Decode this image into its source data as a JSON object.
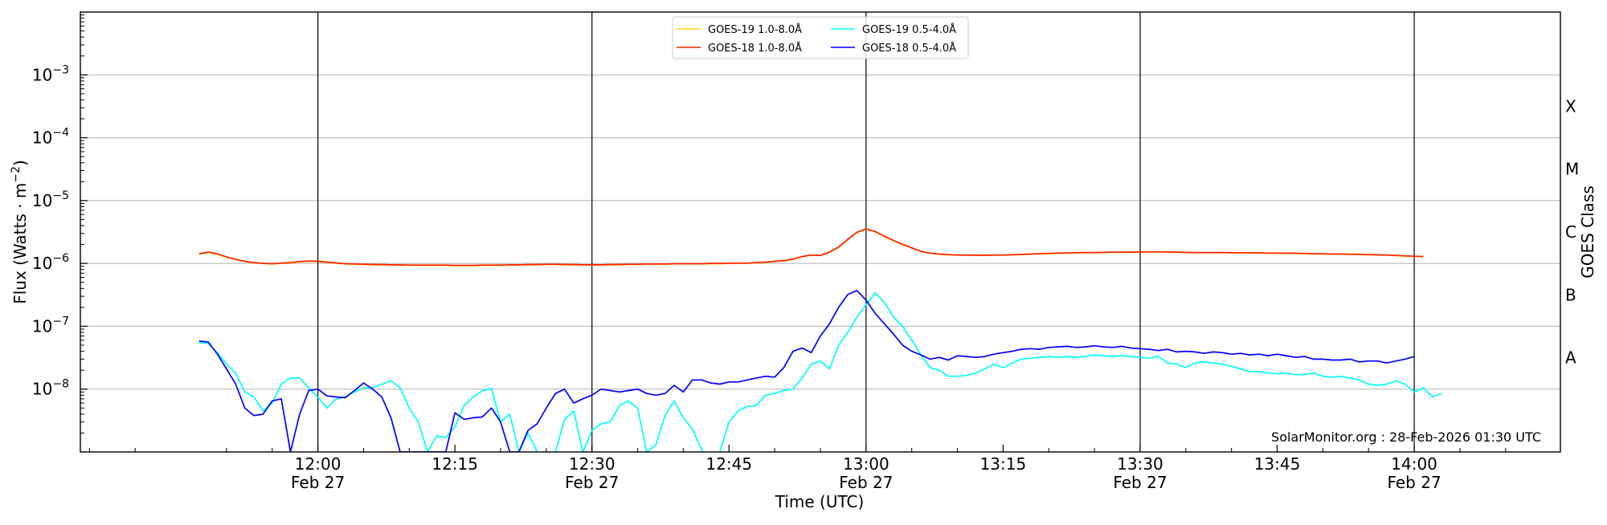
{
  "chart_data": {
    "type": "line",
    "xlabel": "Time (UTC)",
    "ylabel": "Flux (Watts · m",
    "ylabel_sup": "−2",
    "ylabel_end": ")",
    "y2label": "GOES Class",
    "credit": "SolarMonitor.org : 28-Feb-2026 01:30 UTC",
    "y_scale": "log",
    "ylim": [
      1e-09,
      0.01
    ],
    "xlim_min": [
      -26,
      136
    ],
    "x_ticks": [
      {
        "min": 0,
        "label": "12:00",
        "date": "Feb 27"
      },
      {
        "min": 15,
        "label": "12:15",
        "date": ""
      },
      {
        "min": 30,
        "label": "12:30",
        "date": "Feb 27"
      },
      {
        "min": 45,
        "label": "12:45",
        "date": ""
      },
      {
        "min": 60,
        "label": "13:00",
        "date": "Feb 27"
      },
      {
        "min": 75,
        "label": "13:15",
        "date": ""
      },
      {
        "min": 90,
        "label": "13:30",
        "date": "Feb 27"
      },
      {
        "min": 105,
        "label": "13:45",
        "date": ""
      },
      {
        "min": 120,
        "label": "14:00",
        "date": "Feb 27"
      }
    ],
    "y_ticks": [
      {
        "exp": -8,
        "base": "10",
        "sup": "−8"
      },
      {
        "exp": -7,
        "base": "10",
        "sup": "−7"
      },
      {
        "exp": -6,
        "base": "10",
        "sup": "−6"
      },
      {
        "exp": -5,
        "base": "10",
        "sup": "−5"
      },
      {
        "exp": -4,
        "base": "10",
        "sup": "−4"
      },
      {
        "exp": -3,
        "base": "10",
        "sup": "−3"
      }
    ],
    "goes_classes": [
      {
        "label": "A",
        "exp": -7.5
      },
      {
        "label": "B",
        "exp": -6.5
      },
      {
        "label": "C",
        "exp": -5.5
      },
      {
        "label": "M",
        "exp": -4.5
      },
      {
        "label": "X",
        "exp": -3.5
      }
    ],
    "legend_placement": "top-center",
    "grid": "horizontal at decades, vertical lines at 12:00, 12:30, 13:00, 13:30, 14:00",
    "x_start_min": -13,
    "x_step_min": 1,
    "series": [
      {
        "name": "GOES-19 1.0-8.0Å",
        "color": "#FFD700",
        "values": [
          1.4e-06,
          1.5e-06,
          1.4e-06,
          1.25e-06,
          1.15e-06,
          1.07e-06,
          1.02e-06,
          1e-06,
          9.8e-07,
          1e-06,
          1.02e-06,
          1.06e-06,
          1.08e-06,
          1.07e-06,
          1.04e-06,
          1.01e-06,
          9.8e-07,
          9.7e-07,
          9.6e-07,
          9.5e-07,
          9.5e-07,
          9.4e-07,
          9.4e-07,
          9.3e-07,
          9.3e-07,
          9.3e-07,
          9.3e-07,
          9.3e-07,
          9.2e-07,
          9.2e-07,
          9.2e-07,
          9.3e-07,
          9.3e-07,
          9.3e-07,
          9.4e-07,
          9.4e-07,
          9.5e-07,
          9.5e-07,
          9.6e-07,
          9.6e-07,
          9.5e-07,
          9.5e-07,
          9.4e-07,
          9.4e-07,
          9.4e-07,
          9.5e-07,
          9.5e-07,
          9.6e-07,
          9.6e-07,
          9.7e-07,
          9.7e-07,
          9.7e-07,
          9.8e-07,
          9.8e-07,
          9.8e-07,
          9.8e-07,
          9.9e-07,
          9.9e-07,
          1e-06,
          1e-06,
          1e-06,
          1.02e-06,
          1.04e-06,
          1.07e-06,
          1.1e-06,
          1.16e-06,
          1.28e-06,
          1.35e-06,
          1.33e-06,
          1.5e-06,
          1.8e-06,
          2.4e-06,
          3.1e-06,
          3.5e-06,
          3.2e-06,
          2.7e-06,
          2.3e-06,
          2e-06,
          1.75e-06,
          1.55e-06,
          1.45e-06,
          1.4e-06,
          1.37e-06,
          1.35e-06,
          1.35e-06,
          1.34e-06,
          1.34e-06,
          1.35e-06,
          1.35e-06,
          1.36e-06,
          1.38e-06,
          1.4e-06,
          1.42e-06,
          1.43e-06,
          1.45e-06,
          1.46e-06,
          1.47e-06,
          1.48e-06,
          1.48e-06,
          1.49e-06,
          1.5e-06,
          1.5e-06,
          1.5e-06,
          1.51e-06,
          1.52e-06,
          1.52e-06,
          1.51e-06,
          1.5e-06,
          1.49e-06,
          1.48e-06,
          1.48e-06,
          1.48e-06,
          1.48e-06,
          1.47e-06,
          1.47e-06,
          1.47e-06,
          1.46e-06,
          1.45e-06,
          1.45e-06,
          1.44e-06,
          1.44e-06,
          1.43e-06,
          1.42e-06,
          1.41e-06,
          1.4e-06,
          1.4e-06,
          1.39e-06,
          1.38e-06,
          1.37e-06,
          1.36e-06,
          1.35e-06,
          1.33e-06,
          1.31e-06,
          1.29e-06,
          1.28e-06
        ]
      },
      {
        "name": "GOES-18 1.0-8.0Å",
        "color": "#FF2000",
        "values": [
          1.42e-06,
          1.52e-06,
          1.42e-06,
          1.27e-06,
          1.16e-06,
          1.08e-06,
          1.03e-06,
          1e-06,
          9.9e-07,
          1.01e-06,
          1.03e-06,
          1.07e-06,
          1.09e-06,
          1.08e-06,
          1.05e-06,
          1.02e-06,
          9.9e-07,
          9.8e-07,
          9.7e-07,
          9.6e-07,
          9.6e-07,
          9.5e-07,
          9.5e-07,
          9.4e-07,
          9.4e-07,
          9.4e-07,
          9.4e-07,
          9.4e-07,
          9.3e-07,
          9.3e-07,
          9.3e-07,
          9.4e-07,
          9.4e-07,
          9.4e-07,
          9.5e-07,
          9.5e-07,
          9.6e-07,
          9.6e-07,
          9.7e-07,
          9.7e-07,
          9.6e-07,
          9.6e-07,
          9.5e-07,
          9.5e-07,
          9.5e-07,
          9.6e-07,
          9.6e-07,
          9.7e-07,
          9.7e-07,
          9.8e-07,
          9.8e-07,
          9.8e-07,
          9.9e-07,
          9.9e-07,
          9.9e-07,
          9.9e-07,
          1e-06,
          1e-06,
          1.01e-06,
          1.01e-06,
          1.01e-06,
          1.03e-06,
          1.05e-06,
          1.08e-06,
          1.11e-06,
          1.17e-06,
          1.29e-06,
          1.36e-06,
          1.34e-06,
          1.52e-06,
          1.82e-06,
          2.42e-06,
          3.13e-06,
          3.55e-06,
          3.22e-06,
          2.72e-06,
          2.32e-06,
          2.02e-06,
          1.77e-06,
          1.56e-06,
          1.46e-06,
          1.41e-06,
          1.38e-06,
          1.36e-06,
          1.36e-06,
          1.35e-06,
          1.35e-06,
          1.36e-06,
          1.36e-06,
          1.37e-06,
          1.39e-06,
          1.41e-06,
          1.43e-06,
          1.44e-06,
          1.46e-06,
          1.47e-06,
          1.48e-06,
          1.49e-06,
          1.49e-06,
          1.5e-06,
          1.51e-06,
          1.51e-06,
          1.51e-06,
          1.52e-06,
          1.53e-06,
          1.53e-06,
          1.52e-06,
          1.51e-06,
          1.5e-06,
          1.49e-06,
          1.49e-06,
          1.49e-06,
          1.49e-06,
          1.48e-06,
          1.48e-06,
          1.48e-06,
          1.47e-06,
          1.46e-06,
          1.46e-06,
          1.45e-06,
          1.45e-06,
          1.44e-06,
          1.43e-06,
          1.42e-06,
          1.41e-06,
          1.41e-06,
          1.4e-06,
          1.39e-06,
          1.38e-06,
          1.37e-06,
          1.36e-06,
          1.34e-06,
          1.32e-06,
          1.3e-06,
          1.29e-06
        ]
      },
      {
        "name": "GOES-19 0.5-4.0Å",
        "color": "#00FFFF",
        "values": [
          5.5e-08,
          5.3e-08,
          3.8e-08,
          2.5e-08,
          1.8e-08,
          9e-09,
          7.5e-09,
          4.5e-09,
          6e-09,
          1.2e-08,
          1.5e-08,
          1.5e-08,
          1.05e-08,
          7.5e-09,
          5e-09,
          7e-09,
          7.5e-09,
          9e-09,
          1.05e-08,
          1.05e-08,
          1.2e-08,
          1.35e-08,
          1.05e-08,
          5e-09,
          3e-09,
          1e-09,
          1.8e-09,
          1.7e-09,
          2.5e-09,
          5.5e-09,
          7.5e-09,
          9.5e-09,
          1.02e-08,
          3e-09,
          4e-09,
          1e-09,
          2e-09,
          1e-09,
          5e-10,
          1e-09,
          3.3e-09,
          4.5e-09,
          1e-09,
          2.2e-09,
          2.8e-09,
          3e-09,
          5.5e-09,
          6.5e-09,
          5e-09,
          1e-09,
          1.3e-09,
          3.8e-09,
          6.5e-09,
          3.5e-09,
          2.3e-09,
          1.1e-09,
          5e-10,
          1e-09,
          3e-09,
          4.5e-09,
          5.3e-09,
          5.5e-09,
          8e-09,
          8.5e-09,
          9.5e-09,
          1e-08,
          1.5e-08,
          2.5e-08,
          2.8e-08,
          2.1e-08,
          5e-08,
          8e-08,
          1.4e-07,
          2.2e-07,
          3.4e-07,
          2.4e-07,
          1.4e-07,
          1e-07,
          6e-08,
          3.5e-08,
          2.2e-08,
          2e-08,
          1.6e-08,
          1.6e-08,
          1.65e-08,
          1.8e-08,
          2.1e-08,
          2.5e-08,
          2.2e-08,
          2.6e-08,
          3e-08,
          3.1e-08,
          3.2e-08,
          3.3e-08,
          3.2e-08,
          3.3e-08,
          3.2e-08,
          3.3e-08,
          3.5e-08,
          3.4e-08,
          3.3e-08,
          3.4e-08,
          3.3e-08,
          3.2e-08,
          3.1e-08,
          3.3e-08,
          2.6e-08,
          2.5e-08,
          2.2e-08,
          2.6e-08,
          2.7e-08,
          2.6e-08,
          2.5e-08,
          2.3e-08,
          2.1e-08,
          1.9e-08,
          1.9e-08,
          1.8e-08,
          1.75e-08,
          1.8e-08,
          1.7e-08,
          1.7e-08,
          1.8e-08,
          1.6e-08,
          1.55e-08,
          1.6e-08,
          1.5e-08,
          1.4e-08,
          1.2e-08,
          1.15e-08,
          1.2e-08,
          1.35e-08,
          1.2e-08,
          9e-09,
          1.05e-08,
          7.5e-09,
          8.5e-09
        ]
      },
      {
        "name": "GOES-18 0.5-4.0Å",
        "color": "#0000FF",
        "values": [
          5.8e-08,
          5.6e-08,
          3.6e-08,
          2.1e-08,
          1.2e-08,
          5e-09,
          3.8e-09,
          4e-09,
          6.5e-09,
          7e-09,
          1e-09,
          4e-09,
          9.5e-09,
          1e-08,
          7.8e-09,
          7.5e-09,
          7.3e-09,
          9.5e-09,
          1.25e-08,
          1e-08,
          7.5e-09,
          3.5e-09,
          1e-09,
          1e-09,
          1e-09,
          1e-09,
          1e-09,
          1e-09,
          4.2e-09,
          3.3e-09,
          3.5e-09,
          3.6e-09,
          5e-09,
          3e-09,
          1e-09,
          1e-09,
          2.2e-09,
          2.8e-09,
          5e-09,
          8.5e-09,
          1e-08,
          6e-09,
          7e-09,
          8e-09,
          1e-08,
          9.5e-09,
          9e-09,
          9.5e-09,
          1e-08,
          8.5e-09,
          8e-09,
          8.5e-09,
          1.15e-08,
          9e-09,
          1.4e-08,
          1.4e-08,
          1.25e-08,
          1.2e-08,
          1.3e-08,
          1.3e-08,
          1.4e-08,
          1.5e-08,
          1.6e-08,
          1.55e-08,
          2.2e-08,
          4e-08,
          4.5e-08,
          3.8e-08,
          7e-08,
          1.1e-07,
          2e-07,
          3.2e-07,
          3.7e-07,
          2.6e-07,
          1.6e-07,
          1.1e-07,
          7.5e-08,
          5e-08,
          4e-08,
          3.5e-08,
          3e-08,
          3.2e-08,
          2.9e-08,
          3.4e-08,
          3.3e-08,
          3.2e-08,
          3.3e-08,
          3.6e-08,
          3.8e-08,
          4e-08,
          4.3e-08,
          4.4e-08,
          4.3e-08,
          4.6e-08,
          4.7e-08,
          4.8e-08,
          4.6e-08,
          4.7e-08,
          4.9e-08,
          4.7e-08,
          4.6e-08,
          4.8e-08,
          4.5e-08,
          4.4e-08,
          4.3e-08,
          4.1e-08,
          4.3e-08,
          3.9e-08,
          4e-08,
          3.9e-08,
          3.7e-08,
          3.9e-08,
          3.8e-08,
          3.6e-08,
          3.7e-08,
          3.5e-08,
          3.6e-08,
          3.4e-08,
          3.6e-08,
          3.4e-08,
          3.2e-08,
          3.3e-08,
          3e-08,
          3e-08,
          2.9e-08,
          2.9e-08,
          3e-08,
          2.7e-08,
          2.8e-08,
          2.8e-08,
          2.6e-08,
          2.8e-08,
          3e-08,
          3.3e-08
        ]
      }
    ]
  }
}
